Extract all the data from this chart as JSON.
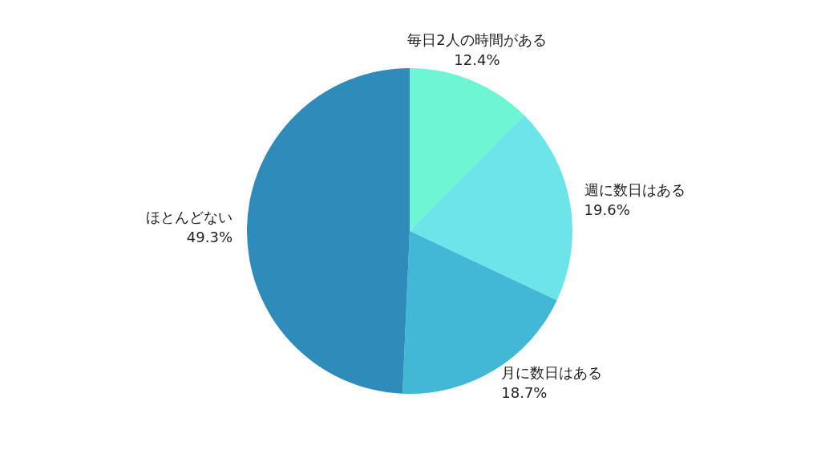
{
  "chart_data": {
    "type": "pie",
    "categories": [
      "毎日2人の時間がある",
      "週に数日はある",
      "月に数日はある",
      "ほとんどない"
    ],
    "values": [
      12.4,
      19.6,
      18.7,
      49.3
    ],
    "colors": [
      "#6df5d4",
      "#6ce4e8",
      "#43b7d6",
      "#2e8bba"
    ],
    "value_labels": [
      "12.4%",
      "19.6%",
      "18.7%",
      "49.3%"
    ],
    "legend": false
  }
}
